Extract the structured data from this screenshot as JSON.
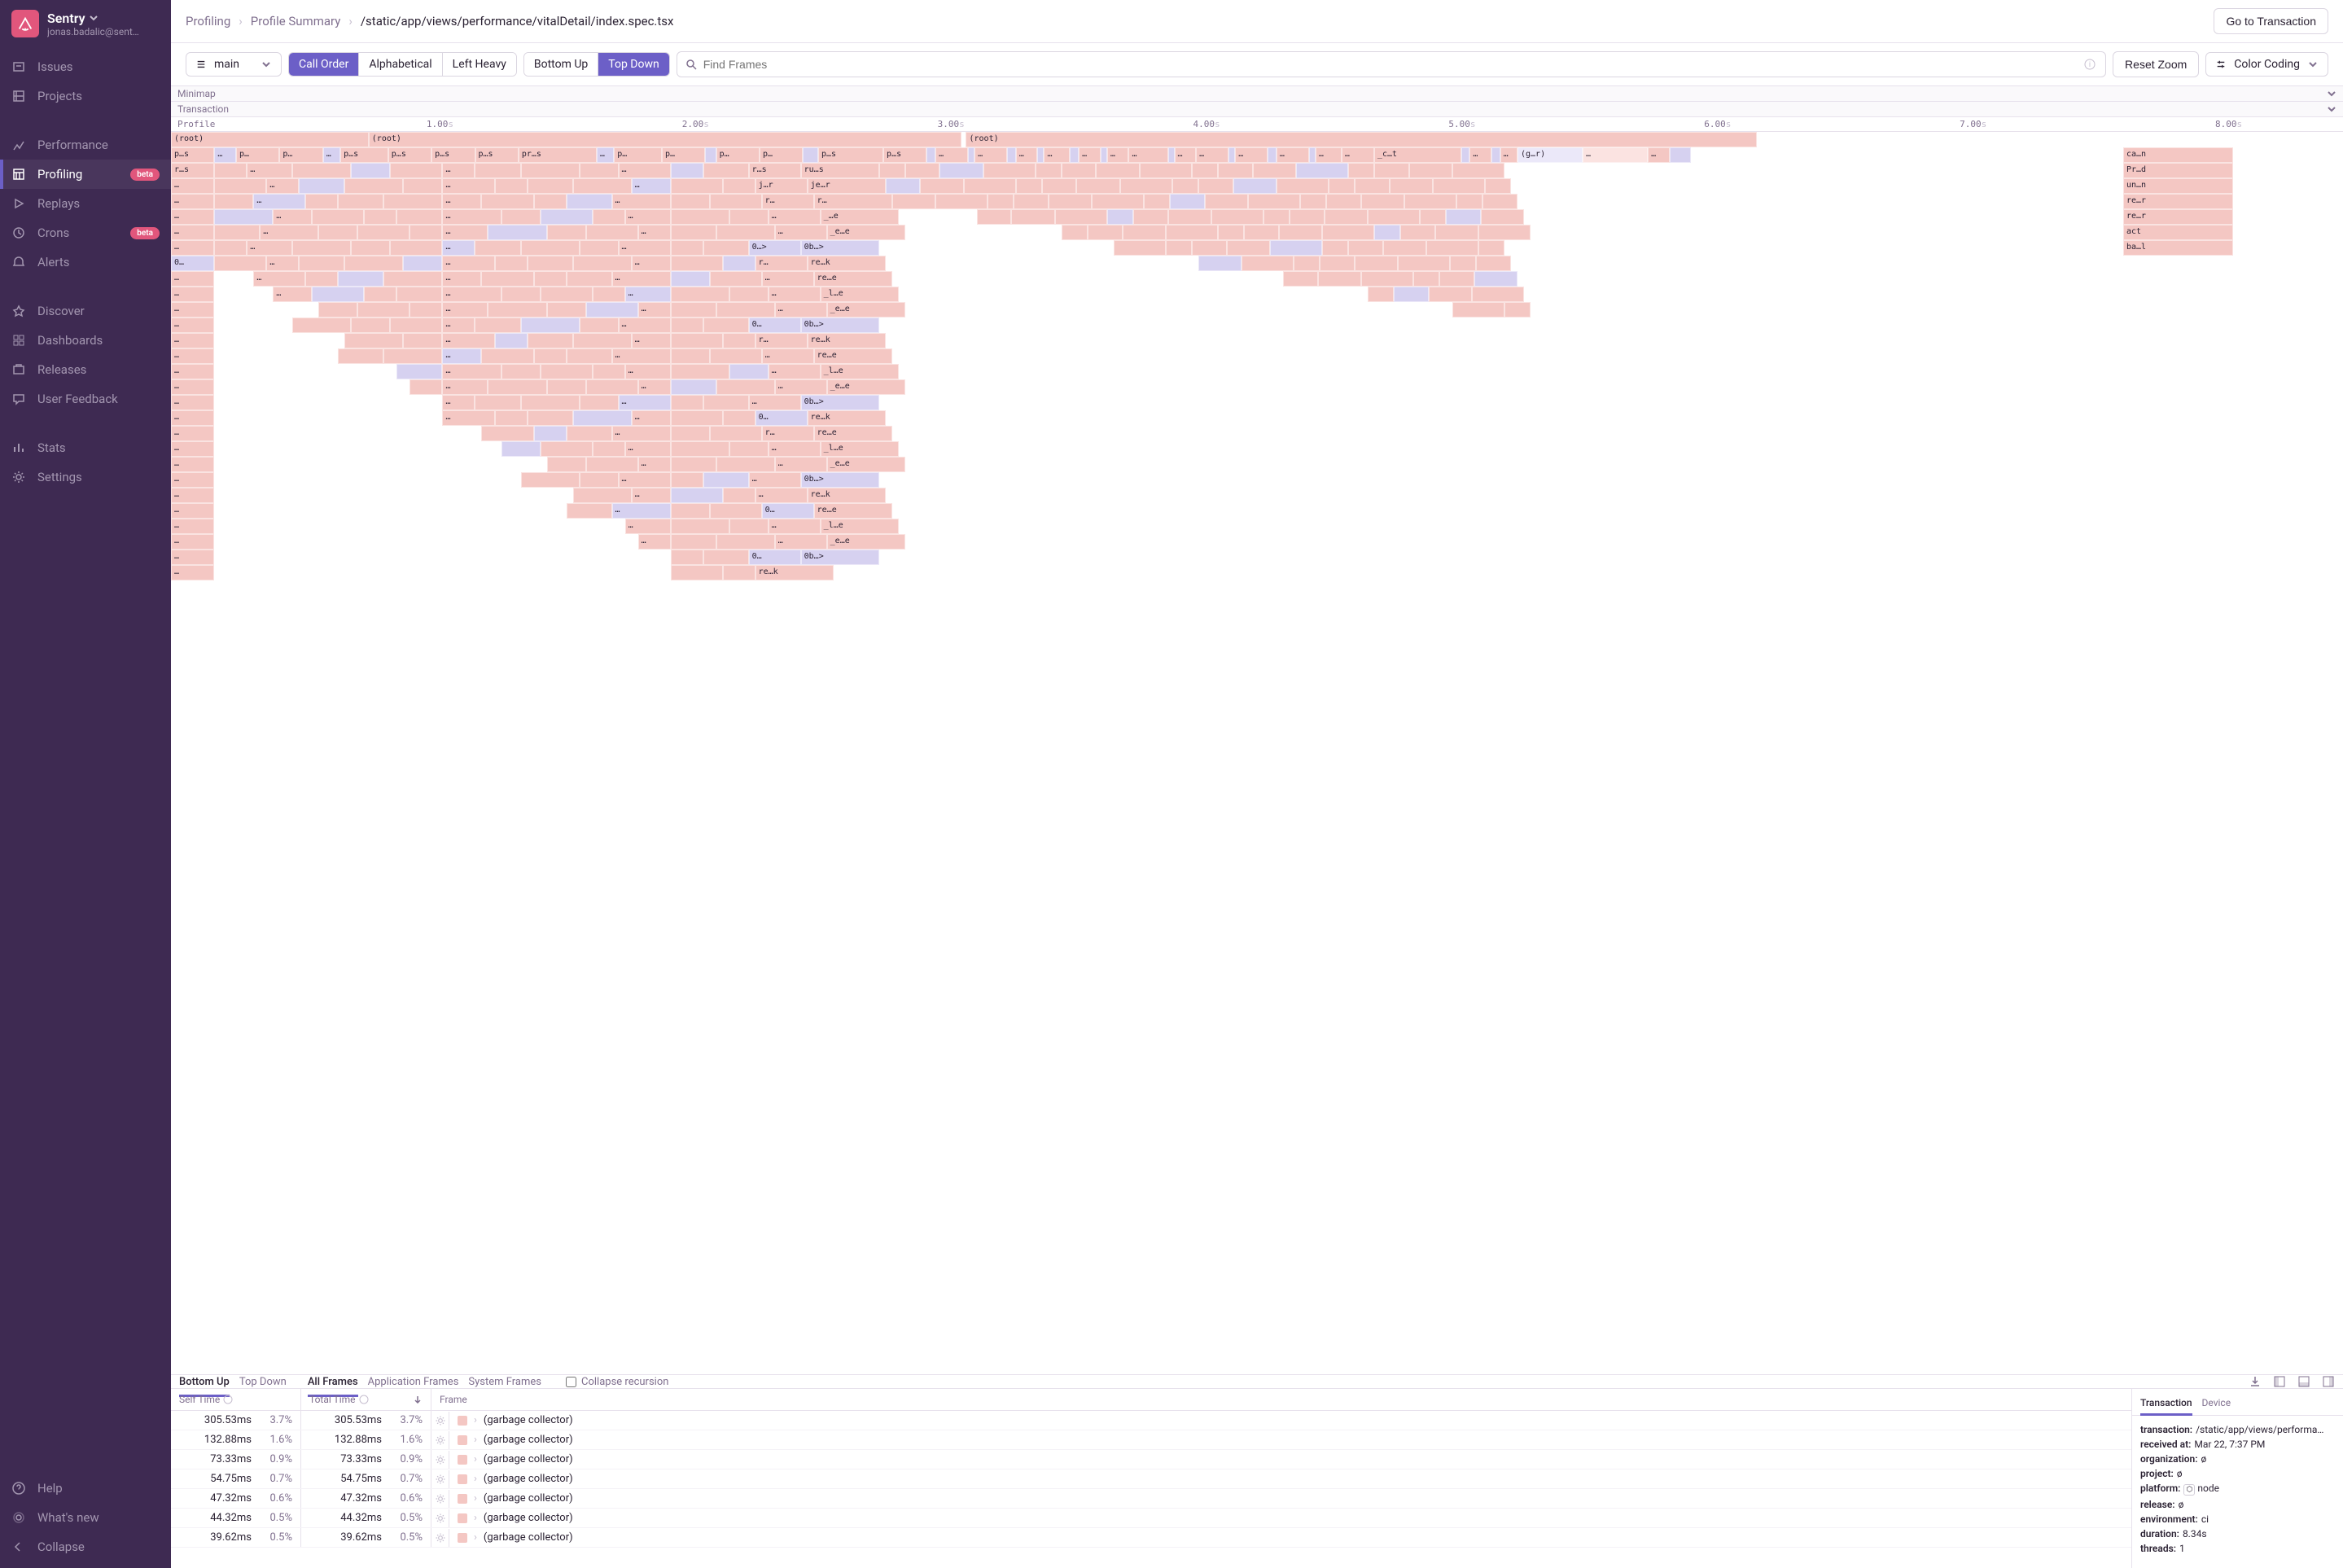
{
  "org": {
    "name": "Sentry",
    "email": "jonas.badalic@sent…"
  },
  "sidebar": {
    "main": [
      {
        "label": "Issues"
      },
      {
        "label": "Projects"
      }
    ],
    "perf": [
      {
        "label": "Performance"
      },
      {
        "label": "Profiling",
        "badge": "beta",
        "active": true
      },
      {
        "label": "Replays"
      },
      {
        "label": "Crons",
        "badge": "beta"
      },
      {
        "label": "Alerts"
      }
    ],
    "explore": [
      {
        "label": "Discover"
      },
      {
        "label": "Dashboards"
      },
      {
        "label": "Releases"
      },
      {
        "label": "User Feedback"
      }
    ],
    "admin": [
      {
        "label": "Stats"
      },
      {
        "label": "Settings"
      }
    ],
    "bottom": [
      {
        "label": "Help"
      },
      {
        "label": "What's new"
      },
      {
        "label": "Collapse"
      }
    ]
  },
  "breadcrumb": {
    "a": "Profiling",
    "b": "Profile Summary",
    "c": "/static/app/views/performance/vitalDetail/index.spec.tsx"
  },
  "header": {
    "btn": "Go to Transaction"
  },
  "toolbar": {
    "thread": "main",
    "seg1": [
      "Call Order",
      "Alphabetical",
      "Left Heavy"
    ],
    "seg1_active": 0,
    "seg2": [
      "Bottom Up",
      "Top Down"
    ],
    "seg2_active": 1,
    "search_placeholder": "Find Frames",
    "reset": "Reset Zoom",
    "color": "Color Coding"
  },
  "strips": {
    "minimap": "Minimap",
    "transaction": "Transaction",
    "profile": "Profile"
  },
  "ruler": {
    "ticks": [
      "1.00",
      "2.00",
      "3.00",
      "4.00",
      "5.00",
      "6.00",
      "7.00",
      "8.00"
    ],
    "unit": "s"
  },
  "flame": {
    "colors": {
      "pink": "#f4c7c3",
      "lav": "#d6d1f0",
      "pink_l": "#fbe3e1",
      "lav_l": "#ebe8f9"
    },
    "roots": [
      {
        "label": "(root)",
        "left_pct": 0,
        "width_pct": 9.1
      },
      {
        "label": "(root)",
        "left_pct": 9.1,
        "width_pct": 27.3
      },
      {
        "label": "(root)",
        "left_pct": 36.6,
        "width_pct": 36.4
      }
    ],
    "row1_cells": [
      {
        "w": 2.0,
        "t": "p…s",
        "c": "pink"
      },
      {
        "w": 1.0,
        "t": "…",
        "c": "lav"
      },
      {
        "w": 2.0,
        "t": "p…",
        "c": "pink"
      },
      {
        "w": 2.0,
        "t": "p…",
        "c": "pink"
      },
      {
        "w": 0.8,
        "t": "…",
        "c": "lav"
      },
      {
        "w": 2.2,
        "t": "p…s",
        "c": "pink"
      },
      {
        "w": 2.0,
        "t": "p…s",
        "c": "pink"
      },
      {
        "w": 2.0,
        "t": "p…s",
        "c": "pink"
      },
      {
        "w": 2.0,
        "t": "p…s",
        "c": "pink"
      },
      {
        "w": 3.6,
        "t": "pr…s",
        "c": "pink"
      },
      {
        "w": 0.8,
        "t": "…",
        "c": "lav"
      },
      {
        "w": 2.2,
        "t": "p…",
        "c": "pink"
      },
      {
        "w": 2.0,
        "t": "p…",
        "c": "pink"
      },
      {
        "w": 0.5,
        "t": "",
        "c": "lav"
      },
      {
        "w": 2.0,
        "t": "p…",
        "c": "pink"
      },
      {
        "w": 2.0,
        "t": "p…",
        "c": "pink"
      },
      {
        "w": 0.7,
        "t": "",
        "c": "lav"
      },
      {
        "w": 3.0,
        "t": "p…s",
        "c": "pink"
      },
      {
        "w": 2.0,
        "t": "p…s",
        "c": "pink"
      },
      {
        "w": 0.4,
        "t": "",
        "c": "lav"
      },
      {
        "w": 1.5,
        "t": "…",
        "c": "pink"
      },
      {
        "w": 0.3,
        "t": "",
        "c": "lav"
      },
      {
        "w": 1.5,
        "t": "…",
        "c": "pink"
      },
      {
        "w": 0.4,
        "t": "",
        "c": "lav"
      },
      {
        "w": 1.0,
        "t": "…",
        "c": "pink"
      },
      {
        "w": 0.3,
        "t": "",
        "c": "lav"
      },
      {
        "w": 1.2,
        "t": "…",
        "c": "pink"
      },
      {
        "w": 0.4,
        "t": "",
        "c": "lav"
      },
      {
        "w": 1.0,
        "t": "…",
        "c": "pink"
      },
      {
        "w": 0.3,
        "t": "",
        "c": "lav"
      },
      {
        "w": 1.0,
        "t": "…",
        "c": "pink"
      },
      {
        "w": 1.8,
        "t": "…",
        "c": "pink"
      },
      {
        "w": 0.3,
        "t": "",
        "c": "lav"
      },
      {
        "w": 1.0,
        "t": "…",
        "c": "pink"
      },
      {
        "w": 1.5,
        "t": "…",
        "c": "pink"
      },
      {
        "w": 0.3,
        "t": "",
        "c": "lav"
      },
      {
        "w": 1.5,
        "t": "…",
        "c": "pink"
      },
      {
        "w": 0.4,
        "t": "",
        "c": "lav"
      },
      {
        "w": 1.5,
        "t": "…",
        "c": "pink"
      },
      {
        "w": 0.3,
        "t": "",
        "c": "lav"
      },
      {
        "w": 1.2,
        "t": "…",
        "c": "pink"
      },
      {
        "w": 1.5,
        "t": "…",
        "c": "pink"
      },
      {
        "w": 4.0,
        "t": "_c…t",
        "c": "pink"
      },
      {
        "w": 0.4,
        "t": "",
        "c": "lav"
      },
      {
        "w": 1.0,
        "t": "…",
        "c": "pink"
      },
      {
        "w": 0.4,
        "t": "",
        "c": "lav"
      },
      {
        "w": 0.8,
        "t": "…",
        "c": "pink"
      },
      {
        "w": 3.0,
        "t": "(g…r)",
        "c": "lav_l"
      },
      {
        "w": 3.0,
        "t": "…",
        "c": "pink_l"
      },
      {
        "w": 1.0,
        "t": "…",
        "c": "pink"
      },
      {
        "w": 1.0,
        "t": "",
        "c": "lav"
      }
    ],
    "left_stack_labels": [
      "r…s",
      "…",
      "…",
      "…",
      "…",
      "…",
      "0…",
      "…",
      "…",
      "…",
      "…",
      "…",
      "…",
      "…",
      "…",
      "…",
      "…",
      "…",
      "…",
      "…",
      "…",
      "…",
      "…",
      "…",
      "…",
      "…",
      "…"
    ],
    "col2_labels": [
      {
        "t": "r…s",
        "c": "pink"
      },
      {
        "t": "j…r",
        "c": "pink"
      },
      {
        "t": "r…",
        "c": "pink"
      },
      {
        "t": "…",
        "c": "pink"
      },
      {
        "t": "…",
        "c": "pink"
      },
      {
        "t": "0…>",
        "c": "lav"
      },
      {
        "t": "r…",
        "c": "pink"
      },
      {
        "t": "…",
        "c": "pink"
      },
      {
        "t": "…",
        "c": "pink"
      },
      {
        "t": "…",
        "c": "pink"
      },
      {
        "t": "0…",
        "c": "lav"
      },
      {
        "t": "r…",
        "c": "pink"
      },
      {
        "t": "…",
        "c": "pink"
      },
      {
        "t": "…",
        "c": "pink"
      },
      {
        "t": "…",
        "c": "pink"
      },
      {
        "t": "…",
        "c": "pink"
      },
      {
        "t": "0…",
        "c": "lav"
      },
      {
        "t": "r…",
        "c": "pink"
      },
      {
        "t": "…",
        "c": "pink"
      },
      {
        "t": "…",
        "c": "pink"
      },
      {
        "t": "…",
        "c": "pink"
      },
      {
        "t": "…",
        "c": "pink"
      },
      {
        "t": "0…",
        "c": "lav"
      },
      {
        "t": "…",
        "c": "pink"
      },
      {
        "t": "…",
        "c": "pink"
      },
      {
        "t": "0…",
        "c": "lav"
      }
    ],
    "col3_labels": [
      {
        "t": "ru…s",
        "c": "pink"
      },
      {
        "t": "je…r",
        "c": "pink"
      },
      {
        "t": "r…",
        "c": "pink"
      },
      {
        "t": "_…e",
        "c": "pink"
      },
      {
        "t": "_e…e",
        "c": "pink"
      },
      {
        "t": "0b…>",
        "c": "lav"
      },
      {
        "t": "re…k",
        "c": "pink"
      },
      {
        "t": "re…e",
        "c": "pink"
      },
      {
        "t": "_l…e",
        "c": "pink"
      },
      {
        "t": "_e…e",
        "c": "pink"
      },
      {
        "t": "0b…>",
        "c": "lav"
      },
      {
        "t": "re…k",
        "c": "pink"
      },
      {
        "t": "re…e",
        "c": "pink"
      },
      {
        "t": "_l…e",
        "c": "pink"
      },
      {
        "t": "_e…e",
        "c": "pink"
      },
      {
        "t": "0b…>",
        "c": "lav"
      },
      {
        "t": "re…k",
        "c": "pink"
      },
      {
        "t": "re…e",
        "c": "pink"
      },
      {
        "t": "_l…e",
        "c": "pink"
      },
      {
        "t": "_e…e",
        "c": "pink"
      },
      {
        "t": "0b…>",
        "c": "lav"
      },
      {
        "t": "re…k",
        "c": "pink"
      },
      {
        "t": "re…e",
        "c": "pink"
      },
      {
        "t": "_l…e",
        "c": "pink"
      },
      {
        "t": "_e…e",
        "c": "pink"
      },
      {
        "t": "0b…>",
        "c": "lav"
      },
      {
        "t": "re…k",
        "c": "pink"
      }
    ],
    "right_stack": [
      "ca…n",
      "Pr…d",
      "un…n",
      "re…r",
      "re…r",
      "act",
      "ba…l"
    ]
  },
  "frame_tabs": {
    "left": [
      "Bottom Up",
      "Top Down"
    ],
    "left_active": 0,
    "mid": [
      "All Frames",
      "Application Frames",
      "System Frames"
    ],
    "mid_active": 0,
    "collapse": "Collapse recursion"
  },
  "table": {
    "head": {
      "self": "Self Time",
      "total": "Total Time",
      "frame": "Frame"
    },
    "rows": [
      {
        "self_ms": "305.53ms",
        "self_pct": "3.7%",
        "total_ms": "305.53ms",
        "total_pct": "3.7%",
        "name": "(garbage collector)",
        "swatch": "#f4c7c3"
      },
      {
        "self_ms": "132.88ms",
        "self_pct": "1.6%",
        "total_ms": "132.88ms",
        "total_pct": "1.6%",
        "name": "(garbage collector)",
        "swatch": "#f4c7c3"
      },
      {
        "self_ms": "73.33ms",
        "self_pct": "0.9%",
        "total_ms": "73.33ms",
        "total_pct": "0.9%",
        "name": "(garbage collector)",
        "swatch": "#f4c7c3"
      },
      {
        "self_ms": "54.75ms",
        "self_pct": "0.7%",
        "total_ms": "54.75ms",
        "total_pct": "0.7%",
        "name": "(garbage collector)",
        "swatch": "#f4c7c3"
      },
      {
        "self_ms": "47.32ms",
        "self_pct": "0.6%",
        "total_ms": "47.32ms",
        "total_pct": "0.6%",
        "name": "(garbage collector)",
        "swatch": "#f4c7c3"
      },
      {
        "self_ms": "44.32ms",
        "self_pct": "0.5%",
        "total_ms": "44.32ms",
        "total_pct": "0.5%",
        "name": "(garbage collector)",
        "swatch": "#f4c7c3"
      },
      {
        "self_ms": "39.62ms",
        "self_pct": "0.5%",
        "total_ms": "39.62ms",
        "total_pct": "0.5%",
        "name": "(garbage collector)",
        "swatch": "#f4c7c3"
      }
    ]
  },
  "meta": {
    "tabs": [
      "Transaction",
      "Device"
    ],
    "active": 0,
    "rows": [
      {
        "k": "transaction:",
        "v": "/static/app/views/performa…"
      },
      {
        "k": "received at:",
        "v": "Mar 22, 7:37 PM"
      },
      {
        "k": "organization:",
        "v": "ø",
        "null": true
      },
      {
        "k": "project:",
        "v": "ø",
        "null": true
      },
      {
        "k": "platform:",
        "v": "node",
        "badge": true
      },
      {
        "k": "release:",
        "v": "ø",
        "null": true
      },
      {
        "k": "environment:",
        "v": "ci"
      },
      {
        "k": "duration:",
        "v": "8.34s"
      },
      {
        "k": "threads:",
        "v": "1"
      }
    ]
  }
}
